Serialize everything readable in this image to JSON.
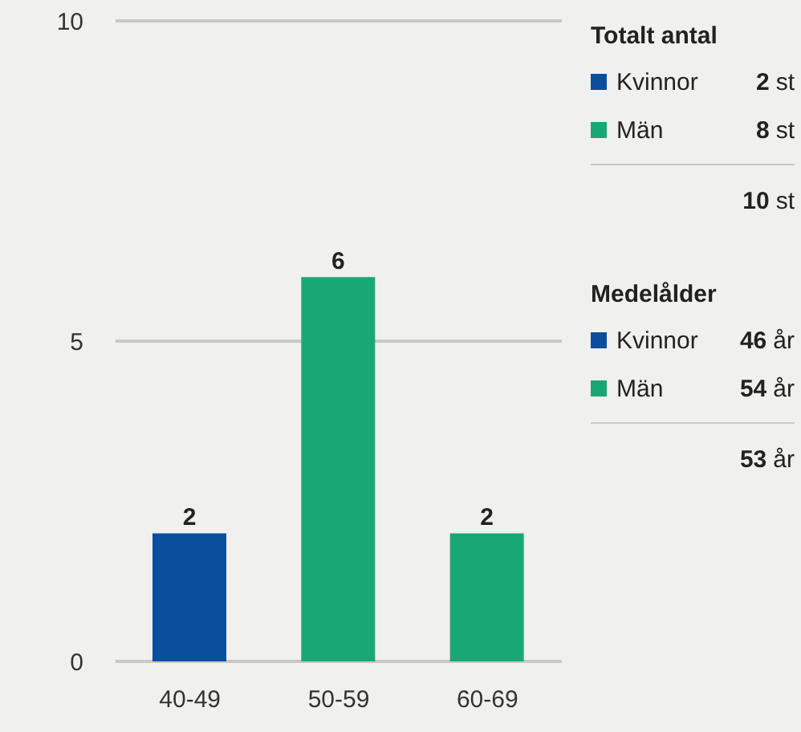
{
  "chart_data": [
    {
      "type": "bar",
      "categories": [
        "40-49",
        "50-59",
        "60-69"
      ],
      "values": [
        2,
        6,
        2
      ],
      "colors": [
        "#0a4f9e",
        "#1aa776",
        "#1aa776"
      ],
      "ylim": [
        0,
        10
      ],
      "yticks": [
        0,
        5,
        10
      ],
      "grid": "y",
      "data_labels": true
    },
    {
      "type": "other",
      "categories": [
        "Totalt antal",
        "Medelålder"
      ],
      "series": [
        {
          "name": "Kvinnor",
          "color": "#0a4f9e",
          "values": [
            2,
            46
          ],
          "value_labels": [
            "2 st",
            "46 år"
          ]
        },
        {
          "name": "Män",
          "color": "#1aa776",
          "values": [
            8,
            54
          ],
          "value_labels": [
            "8 st",
            "54 år"
          ]
        }
      ],
      "totals": [
        "10 st",
        "53 år"
      ]
    }
  ]
}
